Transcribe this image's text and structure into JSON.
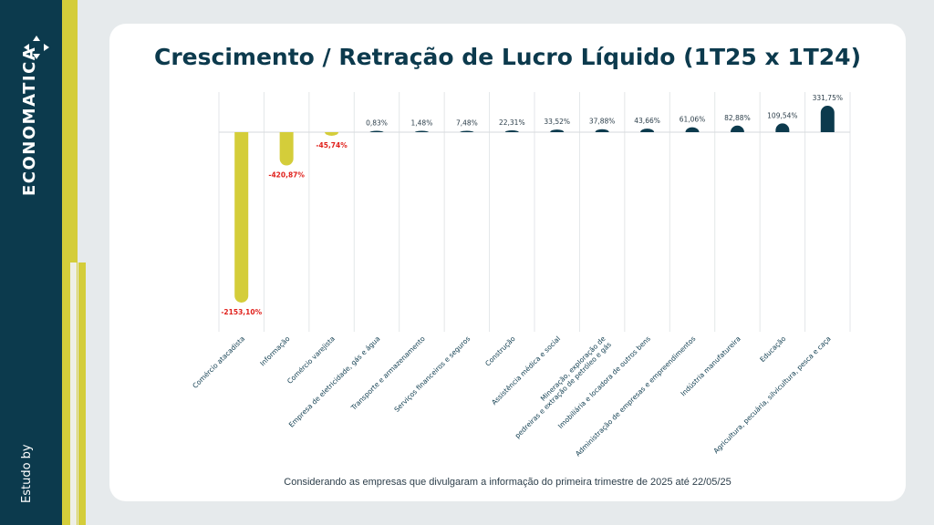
{
  "brand": {
    "name": "ECONOMATICA",
    "study_label": "Estudo by"
  },
  "colors": {
    "sidebar": "#0c3a4d",
    "accent": "#d4cd3a",
    "positive_bar": "#0c3a4d",
    "negative_bar": "#d4cd3a",
    "negative_label": "#e0201b",
    "positive_label": "#2c3e4a"
  },
  "chart_data": {
    "type": "bar",
    "title": "Crescimento / Retração de Lucro Líquido (1T25 x 1T24)",
    "footnote": "Considerando as empresas que divulgaram a informação do primeira trimestre de 2025 até 22/05/25",
    "categories": [
      "Comércio atacadista",
      "Informação",
      "Comércio varejista",
      "Empresa de eletricidade, gás e água",
      "Transporte e armazenamento",
      "Serviços financeiros e seguros",
      "Construção",
      "Assistência médica e social",
      "Mineração, exploração de pedreiras e extração de petróleo e gás",
      "Imobiliária e locadora de outros bens",
      "Administração de empresas e empreendimentos",
      "Indústria manufatureira",
      "Educação",
      "Agricultura, pecuária, silvicultura, pesca e caça"
    ],
    "values": [
      -2153.1,
      -420.87,
      -45.74,
      0.83,
      1.48,
      7.48,
      22.31,
      33.52,
      37.88,
      43.66,
      61.06,
      82.88,
      109.54,
      331.75
    ],
    "labels": [
      "-2153,10%",
      "-420,87%",
      "-45,74%",
      "0,83%",
      "1,48%",
      "7,48%",
      "22,31%",
      "33,52%",
      "37,88%",
      "43,66%",
      "61,06%",
      "82,88%",
      "109,54%",
      "331,75%"
    ],
    "xlabel": "",
    "ylabel": "",
    "grid": "vertical"
  }
}
